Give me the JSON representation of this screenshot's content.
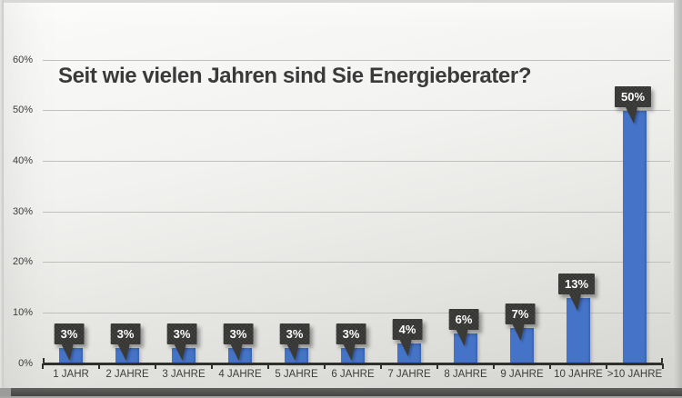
{
  "chart_data": {
    "type": "bar",
    "title": "Seit wie vielen Jahren sind Sie Energieberater?",
    "categories": [
      "1 JAHR",
      "2 JAHRE",
      "3 JAHRE",
      "4 JAHRE",
      "5 JAHRE",
      "6 JAHRE",
      "7 JAHRE",
      "8 JAHRE",
      "9 JAHRE",
      "10 JAHRE",
      ">10 JAHRE"
    ],
    "values": [
      3,
      3,
      3,
      3,
      3,
      3,
      4,
      6,
      7,
      13,
      50
    ],
    "data_labels": [
      "3%",
      "3%",
      "3%",
      "3%",
      "3%",
      "3%",
      "4%",
      "6%",
      "7%",
      "13%",
      "50%"
    ],
    "xlabel": "",
    "ylabel": "",
    "y_axis": {
      "ticks": [
        0,
        10,
        20,
        30,
        40,
        50,
        60
      ],
      "tick_labels": [
        "0%",
        "10%",
        "20%",
        "30%",
        "40%",
        "50%",
        "60%"
      ],
      "range": [
        0,
        60
      ]
    },
    "grid": true,
    "legend": "none",
    "colors": {
      "bar": "#4573c8",
      "bar_edge": "#3a62ad",
      "data_label_bg": "#3a3a38",
      "data_label_text": "#ffffff",
      "gridline": "#bfbfbd",
      "axis": "#2f2f2d",
      "axis_text": "#3d3d3b",
      "title_text": "#3a3a3a"
    }
  }
}
